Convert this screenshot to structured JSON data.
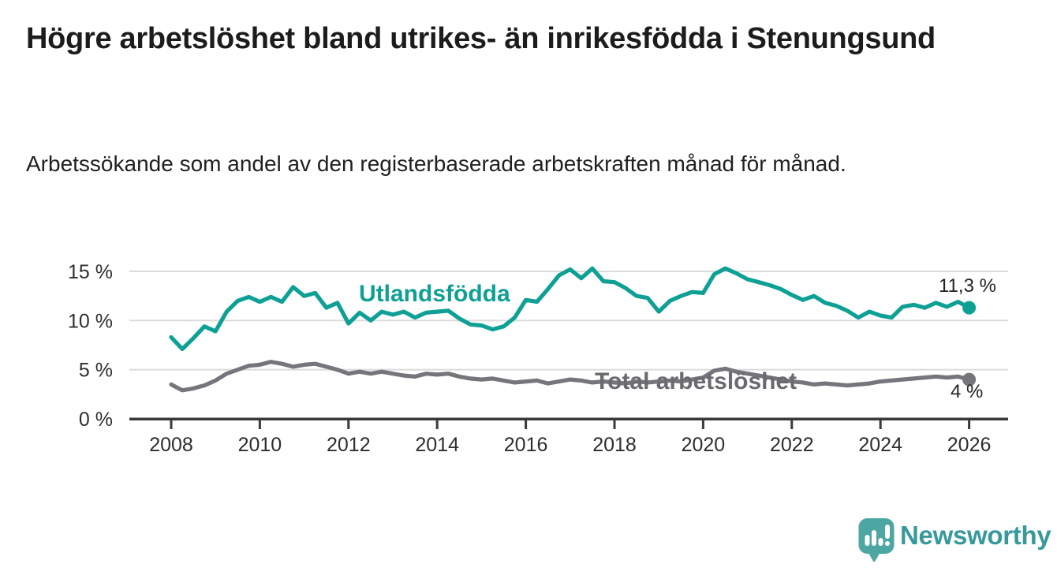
{
  "header": {
    "title": "Högre arbetslöshet bland utrikes- än inrikesfödda i Stenungsund",
    "subtitle": "Arbetssökande som andel av den registerbaserade arbetskraften månad för månad."
  },
  "chart_data": {
    "type": "line",
    "title": "Högre arbetslöshet bland utrikes- än inrikesfödda i Stenungsund",
    "subtitle": "Arbetssökande som andel av den registerbaserade arbetskraften månad för månad.",
    "x_unit": "decimal_year",
    "x_start": 2008.0,
    "x_step_years": 0.25,
    "xlim": [
      2007.05,
      2026.9
    ],
    "ylim": [
      0,
      16.5
    ],
    "grid": "horizontal",
    "legend_position": "inline-labels",
    "x_ticks": [
      2008,
      2010,
      2012,
      2014,
      2016,
      2018,
      2020,
      2022,
      2024,
      2026
    ],
    "y_ticks": [
      {
        "value": 0,
        "label": "0 %"
      },
      {
        "value": 5,
        "label": "5 %"
      },
      {
        "value": 10,
        "label": "10 %"
      },
      {
        "value": 15,
        "label": "15 %"
      }
    ],
    "series": [
      {
        "name": "Utlandsfödda",
        "slug": "utlandsfodda",
        "color": "#0FA095",
        "end_label": "11,3 %",
        "end_value": 11.3,
        "values": [
          8.3,
          7.1,
          8.2,
          9.4,
          8.9,
          10.9,
          12.0,
          12.4,
          11.9,
          12.4,
          11.9,
          13.4,
          12.5,
          12.8,
          11.3,
          11.8,
          9.7,
          10.8,
          10.0,
          10.9,
          10.6,
          10.9,
          10.3,
          10.8,
          10.9,
          11.0,
          10.2,
          9.6,
          9.5,
          9.1,
          9.4,
          10.3,
          12.1,
          11.9,
          13.2,
          14.6,
          15.2,
          14.3,
          15.3,
          14.0,
          13.9,
          13.3,
          12.5,
          12.3,
          10.9,
          12.0,
          12.5,
          12.9,
          12.8,
          14.7,
          15.3,
          14.8,
          14.2,
          13.9,
          13.6,
          13.2,
          12.6,
          12.1,
          12.5,
          11.8,
          11.5,
          11.0,
          10.3,
          10.9,
          10.5,
          10.3,
          11.4,
          11.6,
          11.3,
          11.8,
          11.4,
          11.9,
          11.3
        ]
      },
      {
        "name": "Total arbetslöshet",
        "slug": "total-arbetsloshet",
        "color": "#76757B",
        "end_label": "4 %",
        "end_value": 4.0,
        "values": [
          3.5,
          2.9,
          3.1,
          3.4,
          3.9,
          4.6,
          5.0,
          5.4,
          5.5,
          5.8,
          5.6,
          5.3,
          5.5,
          5.6,
          5.3,
          5.0,
          4.6,
          4.8,
          4.6,
          4.8,
          4.6,
          4.4,
          4.3,
          4.6,
          4.5,
          4.6,
          4.3,
          4.1,
          4.0,
          4.1,
          3.9,
          3.7,
          3.8,
          3.9,
          3.6,
          3.8,
          4.0,
          3.9,
          3.7,
          3.8,
          3.7,
          3.6,
          3.8,
          3.7,
          3.8,
          3.9,
          3.8,
          4.0,
          4.2,
          4.9,
          5.1,
          4.8,
          4.6,
          4.4,
          4.2,
          4.0,
          3.8,
          3.7,
          3.5,
          3.6,
          3.5,
          3.4,
          3.5,
          3.6,
          3.8,
          3.9,
          4.0,
          4.1,
          4.2,
          4.3,
          4.2,
          4.3,
          4.0
        ]
      }
    ]
  },
  "footer": {
    "brand": "Newsworthy",
    "logo_icon": "bar-chart-speech-bubble-icon"
  },
  "colors": {
    "accent_teal": "#0FA095",
    "series_gray": "#76757B",
    "gray_label": "#6B6A70",
    "brand_teal_text": "#37999B",
    "brand_teal_icon": "#4CA6A2",
    "axis_line": "#3A3A3A",
    "grid_line": "#DBDBDB",
    "axis_text": "#2E2E2E",
    "title_text": "#1C1C1C"
  }
}
